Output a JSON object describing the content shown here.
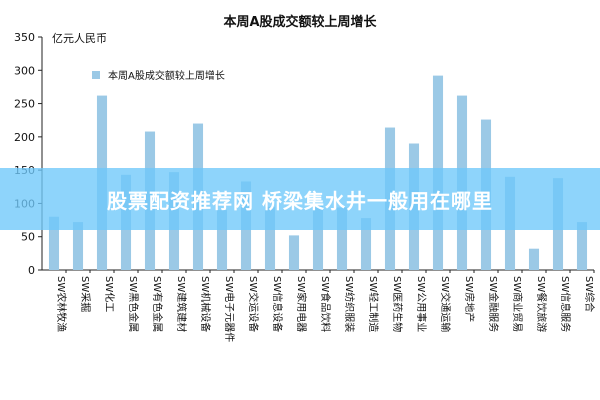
{
  "chart_data": {
    "type": "bar",
    "title": "本周A股成交额较上周增长",
    "ylabel": "亿元人民币",
    "legend": "本周A股成交额较上周增长",
    "legend_position": "top-left",
    "ylim": [
      0,
      350
    ],
    "yticks": [
      0,
      50,
      100,
      150,
      200,
      250,
      300,
      350
    ],
    "grid": false,
    "bar_color": "#9bc9e6",
    "categories": [
      "SW农林牧渔",
      "SW采掘",
      "SW化工",
      "SW黑色金属",
      "SW有色金属",
      "SW建筑建材",
      "SW机械设备",
      "SW电子元器件",
      "SW交运设备",
      "SW信息设备",
      "SW家用电器",
      "SW食品饮料",
      "SW纺织服装",
      "SW轻工制造",
      "SW医药生物",
      "SW公用事业",
      "SW交通运输",
      "SW房地产",
      "SW金融服务",
      "SW商业贸易",
      "SW餐饮旅游",
      "SW信息服务",
      "SW综合"
    ],
    "values": [
      80,
      72,
      262,
      143,
      208,
      147,
      220,
      90,
      133,
      95,
      52,
      96,
      94,
      78,
      214,
      190,
      292,
      262,
      226,
      140,
      32,
      138,
      72
    ]
  },
  "overlay": {
    "text": "股票配资推荐网 桥梁集水井一般用在哪里"
  }
}
